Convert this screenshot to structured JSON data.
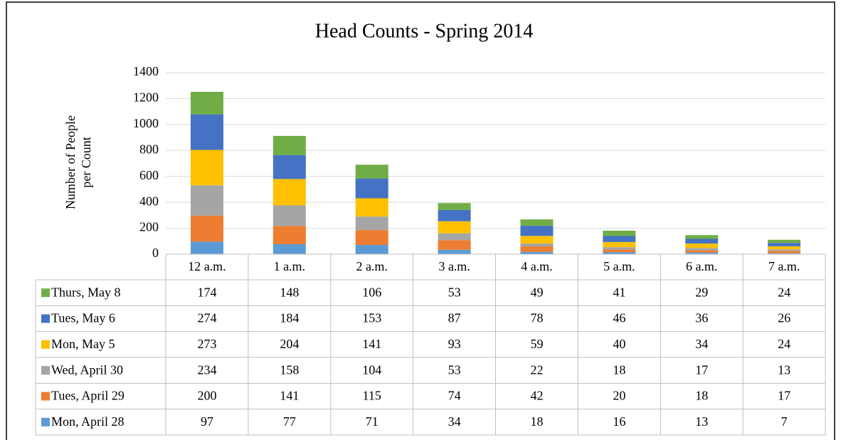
{
  "chart_data": {
    "type": "stacked-bar",
    "title": "Head Counts - Spring 2014",
    "ylabel": [
      "Number of People",
      "per Count"
    ],
    "categories": [
      "12 a.m.",
      "1 a.m.",
      "2 a.m.",
      "3 a.m.",
      "4 a.m.",
      "5 a.m.",
      "6 a.m.",
      "7 a.m."
    ],
    "series": [
      {
        "name": "Mon, April 28",
        "color": "#5b9bd5",
        "values": [
          97,
          77,
          71,
          34,
          18,
          16,
          13,
          7
        ]
      },
      {
        "name": "Tues, April 29",
        "color": "#ed7d31",
        "values": [
          200,
          141,
          115,
          74,
          42,
          20,
          18,
          17
        ]
      },
      {
        "name": "Wed, April 30",
        "color": "#a5a5a5",
        "values": [
          234,
          158,
          104,
          53,
          22,
          18,
          17,
          13
        ]
      },
      {
        "name": "Mon, May 5",
        "color": "#ffc000",
        "values": [
          273,
          204,
          141,
          93,
          59,
          40,
          34,
          24
        ]
      },
      {
        "name": "Tues, May 6",
        "color": "#4472c4",
        "values": [
          274,
          184,
          153,
          87,
          78,
          46,
          36,
          26
        ]
      },
      {
        "name": "Thurs, May 8",
        "color": "#70ad47",
        "values": [
          174,
          148,
          106,
          53,
          49,
          41,
          29,
          24
        ]
      }
    ],
    "ylim": [
      0,
      1400
    ],
    "yticks": [
      0,
      200,
      400,
      600,
      800,
      1000,
      1200,
      1400
    ],
    "grid": true
  }
}
